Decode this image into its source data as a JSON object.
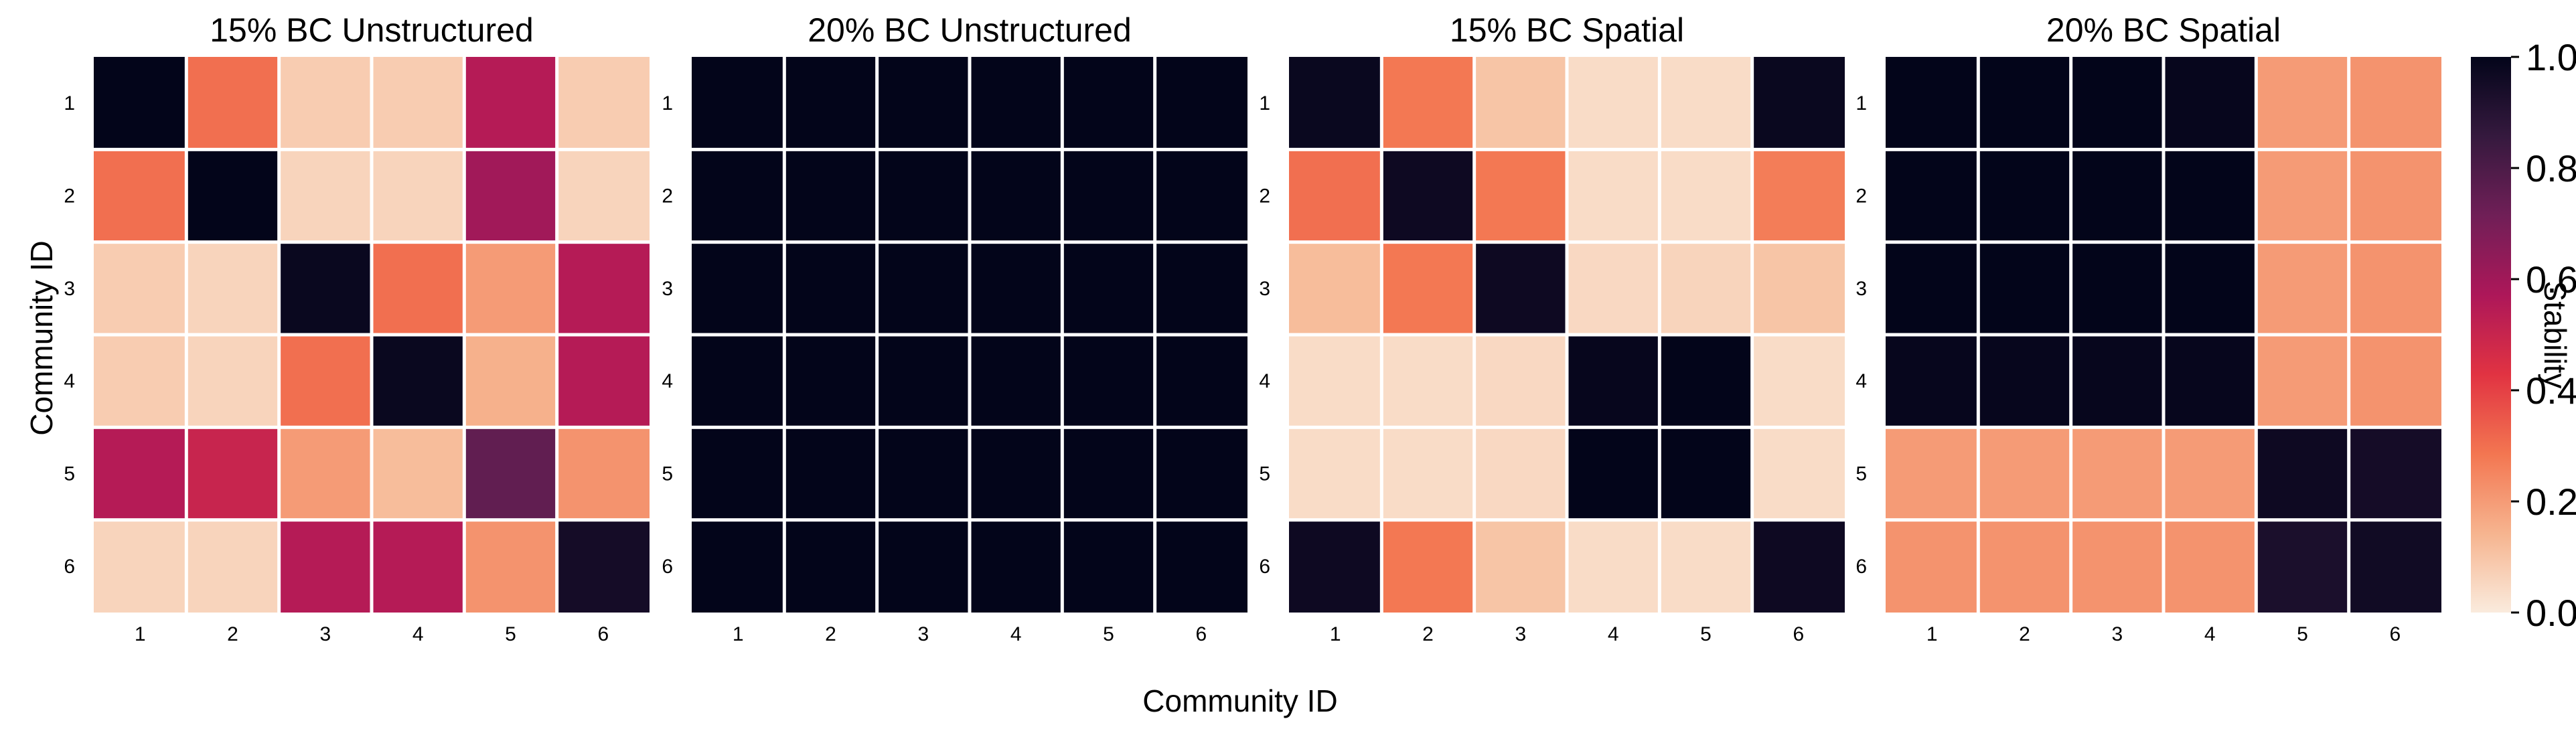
{
  "chart_data": {
    "type": "heatmap",
    "shared_xlabel": "Community ID",
    "shared_ylabel": "Community ID",
    "colorbar": {
      "label": "Stability",
      "range": [
        0.0,
        1.0
      ],
      "ticks": [
        "0.0",
        "0.2",
        "0.4",
        "0.6",
        "0.8",
        "1.0"
      ],
      "colors": [
        "#faebdd",
        "#f6b48f",
        "#f37651",
        "#e13342",
        "#ad1759",
        "#701f57",
        "#35193e",
        "#03051a"
      ]
    },
    "tick_labels": [
      "1",
      "2",
      "3",
      "4",
      "5",
      "6"
    ],
    "panels": [
      {
        "title": "15% BC Unstructured",
        "matrix": [
          [
            1.0,
            0.3,
            0.08,
            0.08,
            0.55,
            0.08
          ],
          [
            0.3,
            1.0,
            0.06,
            0.06,
            0.6,
            0.06
          ],
          [
            0.08,
            0.06,
            0.98,
            0.3,
            0.2,
            0.55
          ],
          [
            0.08,
            0.06,
            0.3,
            0.98,
            0.15,
            0.55
          ],
          [
            0.55,
            0.5,
            0.2,
            0.12,
            0.75,
            0.22
          ],
          [
            0.06,
            0.06,
            0.55,
            0.55,
            0.22,
            0.95
          ]
        ]
      },
      {
        "title": "20% BC Unstructured",
        "matrix": [
          [
            1.0,
            1.0,
            1.0,
            1.0,
            1.0,
            1.0
          ],
          [
            1.0,
            1.0,
            1.0,
            1.0,
            1.0,
            1.0
          ],
          [
            1.0,
            1.0,
            1.0,
            1.0,
            1.0,
            1.0
          ],
          [
            1.0,
            1.0,
            1.0,
            1.0,
            1.0,
            1.0
          ],
          [
            1.0,
            1.0,
            1.0,
            1.0,
            1.0,
            1.0
          ],
          [
            1.0,
            1.0,
            1.0,
            1.0,
            1.0,
            1.0
          ]
        ]
      },
      {
        "title": "15% BC Spatial",
        "matrix": [
          [
            0.98,
            0.28,
            0.1,
            0.04,
            0.04,
            0.98
          ],
          [
            0.3,
            0.97,
            0.28,
            0.04,
            0.04,
            0.27
          ],
          [
            0.12,
            0.28,
            0.97,
            0.05,
            0.06,
            0.1
          ],
          [
            0.04,
            0.04,
            0.05,
            0.99,
            1.0,
            0.04
          ],
          [
            0.04,
            0.04,
            0.05,
            1.0,
            1.0,
            0.04
          ],
          [
            0.97,
            0.28,
            0.1,
            0.04,
            0.04,
            0.97
          ]
        ]
      },
      {
        "title": "20% BC Spatial",
        "matrix": [
          [
            1.0,
            1.0,
            1.0,
            0.99,
            0.2,
            0.22
          ],
          [
            1.0,
            1.0,
            1.0,
            1.0,
            0.2,
            0.22
          ],
          [
            1.0,
            1.0,
            1.0,
            1.0,
            0.2,
            0.22
          ],
          [
            0.99,
            0.99,
            0.99,
            0.99,
            0.2,
            0.22
          ],
          [
            0.2,
            0.2,
            0.2,
            0.2,
            0.97,
            0.95
          ],
          [
            0.22,
            0.22,
            0.22,
            0.22,
            0.93,
            0.96
          ]
        ]
      }
    ]
  }
}
